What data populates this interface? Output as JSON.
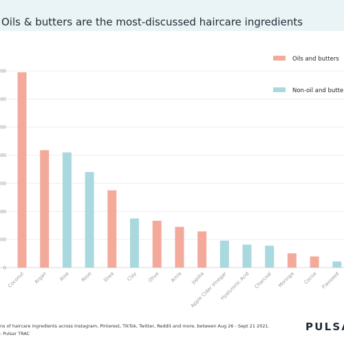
{
  "chart_data": {
    "type": "bar",
    "title": "Oils & butters are the most-discussed haircare ingredients",
    "xlabel": "",
    "ylabel": "",
    "categories": [
      "Coconut",
      "Argan",
      "Aloe",
      "Rose",
      "Shea",
      "Clay",
      "Olive",
      "Amla",
      "Jojoba",
      "Apple Cider Vinegar",
      "Hyaluronic Acid",
      "Charcoal",
      "Moringa",
      "Cocoa",
      "Flaxseed"
    ],
    "values": [
      6950,
      4180,
      4100,
      3400,
      2750,
      1750,
      1670,
      1450,
      1290,
      960,
      820,
      780,
      510,
      400,
      220
    ],
    "series_group": [
      "oil",
      "oil",
      "non",
      "non",
      "oil",
      "non",
      "oil",
      "oil",
      "oil",
      "non",
      "non",
      "non",
      "oil",
      "oil",
      "non"
    ],
    "ylim": [
      0,
      7000
    ],
    "yticks": [
      0,
      1000,
      2000,
      3000,
      4000,
      5000,
      6000,
      7000
    ],
    "ytick_labels": [
      "0",
      "000",
      "000",
      "000",
      "000",
      "000",
      "000",
      "000"
    ],
    "legend": [
      {
        "name": "Oils and butters",
        "color": "#f4aa9b"
      },
      {
        "name": "Non-oil and butte",
        "color": "#a9d9de"
      }
    ],
    "legend_position": "top-right",
    "grid": true
  },
  "footer": {
    "note": "ns of haircare ingredients across Instagram, Pinterest, TikTok, Twitter, Reddit and more, between Aug 26 - Sept 21 2021.",
    "source": ": Pulsar TRAC"
  },
  "logo": "PULSAR"
}
